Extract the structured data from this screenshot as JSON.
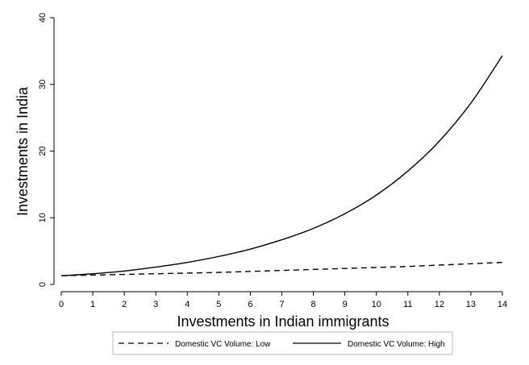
{
  "chart_data": {
    "type": "line",
    "xlabel": "Investments in Indian immigrants",
    "ylabel": "Investments in India",
    "xlim": [
      0,
      14
    ],
    "ylim": [
      0,
      40
    ],
    "x_ticks": [
      "0",
      "1",
      "2",
      "3",
      "4",
      "5",
      "6",
      "7",
      "8",
      "9",
      "10",
      "11",
      "12",
      "13",
      "14"
    ],
    "y_ticks": [
      "0",
      "10",
      "20",
      "30",
      "40"
    ],
    "grid": false,
    "legend_position": "bottom",
    "x": [
      0,
      1,
      2,
      3,
      4,
      5,
      6,
      7,
      8,
      9,
      10,
      11,
      12,
      13,
      14
    ],
    "series": [
      {
        "name": "Domestic VC Volume: Low",
        "line_style": "dashed",
        "color": "#000000",
        "values": [
          1.3,
          1.4,
          1.5,
          1.6,
          1.7,
          1.8,
          1.95,
          2.1,
          2.25,
          2.4,
          2.55,
          2.7,
          2.9,
          3.1,
          3.3
        ]
      },
      {
        "name": "Domestic VC Volume: High",
        "line_style": "solid",
        "color": "#000000",
        "values": [
          1.3,
          1.6,
          2.0,
          2.6,
          3.3,
          4.2,
          5.3,
          6.7,
          8.4,
          10.6,
          13.4,
          17.0,
          21.5,
          27.2,
          34.3
        ]
      }
    ]
  }
}
